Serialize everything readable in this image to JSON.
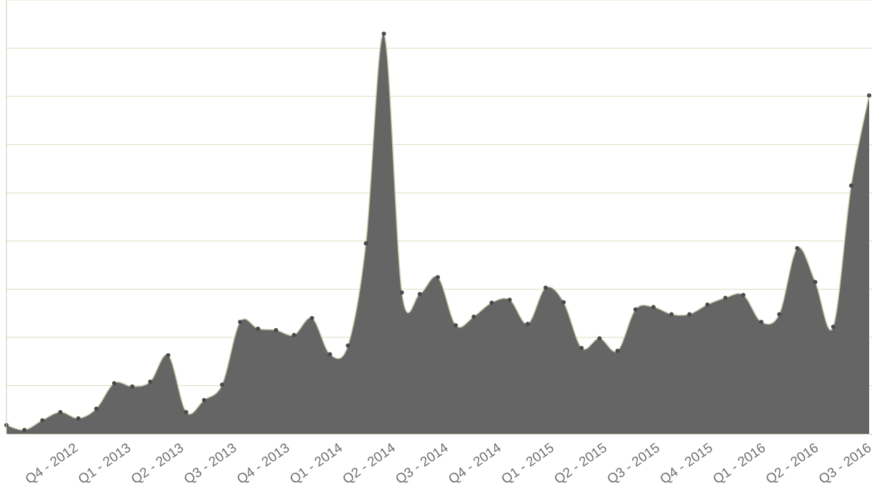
{
  "chart_data": {
    "type": "area",
    "title": "",
    "xlabel": "",
    "ylabel": "",
    "grid": true,
    "tick_labels": [
      "Q4 - 2012",
      "Q1 - 2013",
      "Q2 - 2013",
      "Q3 - 2013",
      "Q4 - 2013",
      "Q1 - 2014",
      "Q2 - 2014",
      "Q3 - 2014",
      "Q4 - 2014",
      "Q1 - 2015",
      "Q2 - 2015",
      "Q3 - 2015",
      "Q4 - 2015",
      "Q1 - 2016",
      "Q2 - 2016",
      "Q3 - 2016"
    ],
    "ylim": [
      0,
      900
    ],
    "grid_step": 100,
    "series": [
      {
        "values": [
          18,
          8,
          28,
          45,
          32,
          52,
          105,
          98,
          108,
          163,
          45,
          70,
          102,
          232,
          218,
          215,
          205,
          240,
          165,
          183,
          395,
          830,
          293,
          290,
          325,
          225,
          243,
          272,
          278,
          228,
          303,
          273,
          178,
          198,
          172,
          258,
          263,
          248,
          248,
          268,
          282,
          288,
          232,
          248,
          385,
          315,
          222,
          515,
          702
        ]
      }
    ],
    "colors": {
      "fill": "#656565",
      "stroke": "#c2c9a8",
      "point": "#4a4a4a",
      "grid": "#dedcbe",
      "axis": "#c8c8b0",
      "tick_text": "#6f6f6f"
    }
  }
}
